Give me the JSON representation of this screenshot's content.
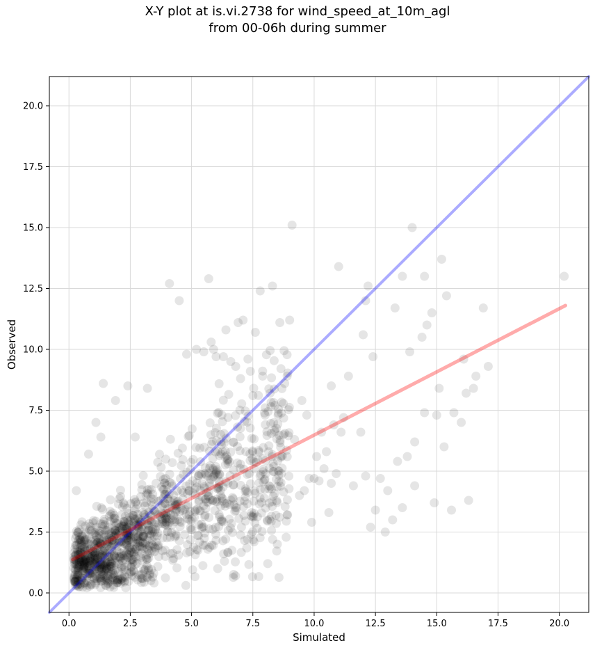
{
  "chart_data": {
    "type": "scatter",
    "title": "X-Y plot at is.vi.2738 for wind_speed_at_10m_agl\nfrom 00-06h during summer",
    "title_lines": [
      "X-Y plot at is.vi.2738 for wind_speed_at_10m_agl",
      "from 00-06h during summer"
    ],
    "xlabel": "Simulated",
    "ylabel": "Observed",
    "xlim": [
      -0.8,
      21.2
    ],
    "ylim": [
      -0.8,
      21.2
    ],
    "xticks": [
      0.0,
      2.5,
      5.0,
      7.5,
      10.0,
      12.5,
      15.0,
      17.5,
      20.0
    ],
    "xtick_labels": [
      "0.0",
      "2.5",
      "5.0",
      "7.5",
      "10.0",
      "12.5",
      "15.0",
      "17.5",
      "20.0"
    ],
    "yticks": [
      0.0,
      2.5,
      5.0,
      7.5,
      10.0,
      12.5,
      15.0,
      17.5,
      20.0
    ],
    "ytick_labels": [
      "0.0",
      "2.5",
      "5.0",
      "7.5",
      "10.0",
      "12.5",
      "15.0",
      "17.5",
      "20.0"
    ],
    "grid": true,
    "legend": "none",
    "colors": {
      "points": "#000000",
      "one_to_one_line": "#0000ff",
      "regression_line": "#ff0000",
      "grid": "#d9d9d9"
    },
    "series": [
      {
        "kind": "points",
        "x": [
          9.1,
          14.0,
          8.3,
          11.0,
          12.1,
          12.2,
          13.6,
          15.2,
          16.9,
          15.4,
          14.8,
          14.5,
          14.6,
          13.9,
          14.4,
          12.4,
          12.0,
          13.3,
          17.1,
          16.1,
          16.2,
          16.5,
          16.6,
          15.0,
          15.1,
          14.5,
          14.1,
          13.8,
          13.4,
          12.7,
          12.1,
          11.9,
          15.3,
          16.0,
          15.7,
          14.1,
          13.6,
          13.2,
          12.9,
          12.5,
          12.3,
          13.0,
          14.9,
          15.6,
          16.3,
          20.2,
          10.6,
          10.7,
          10.2,
          9.8,
          10.5,
          10.8,
          11.1,
          11.6,
          10.9,
          10.4,
          4.1,
          5.7,
          7.8,
          6.9,
          4.5,
          7.1,
          6.4,
          9.0,
          8.6,
          7.6,
          5.8,
          1.4,
          2.4,
          3.2,
          0.3,
          0.8,
          1.1,
          1.9,
          2.7,
          1.3,
          6.2,
          9.5,
          8.8,
          9.7,
          9.2,
          10.1,
          10.3,
          11.2,
          10.0,
          9.6,
          9.4,
          8.9,
          8.5,
          9.9,
          10.7,
          11.4,
          7.3,
          6.8,
          7.4,
          7.9,
          8.2,
          7.0,
          6.6,
          5.9,
          6.3,
          7.5,
          8.4,
          8.0,
          5.2,
          4.8,
          5.5,
          6.0
        ],
        "y": [
          15.1,
          15.0,
          12.6,
          13.4,
          12.0,
          12.6,
          13.0,
          13.7,
          11.7,
          12.2,
          11.5,
          13.0,
          11.0,
          9.9,
          10.5,
          9.7,
          10.6,
          11.7,
          9.3,
          9.6,
          8.2,
          8.4,
          8.9,
          7.3,
          8.4,
          7.4,
          6.2,
          5.6,
          5.4,
          4.7,
          4.8,
          6.6,
          6.0,
          7.0,
          7.4,
          4.4,
          3.5,
          3.0,
          2.5,
          3.4,
          2.7,
          4.2,
          3.7,
          3.4,
          3.8,
          13.0,
          3.3,
          4.5,
          4.6,
          4.7,
          5.8,
          6.9,
          6.6,
          4.4,
          4.9,
          5.1,
          12.7,
          12.9,
          12.4,
          11.1,
          12.0,
          11.2,
          10.8,
          11.2,
          11.1,
          10.7,
          10.3,
          8.6,
          8.5,
          8.4,
          4.2,
          5.7,
          7.0,
          7.9,
          6.4,
          6.4,
          6.2,
          7.9,
          8.6,
          7.3,
          6.3,
          5.6,
          6.6,
          7.2,
          4.7,
          4.2,
          4.0,
          3.2,
          2.0,
          2.9,
          8.5,
          8.9,
          9.6,
          9.3,
          9.1,
          8.9,
          8.2,
          8.8,
          9.5,
          10.0,
          9.7,
          8.1,
          7.7,
          7.3,
          10.0,
          9.8,
          9.9,
          9.7
        ],
        "count_note": "dense cluster of semi-transparent points concentrated between Simulated 0–8 and Observed 0–9"
      },
      {
        "kind": "line",
        "role": "1:1 reference",
        "x": [
          -0.8,
          21.2
        ],
        "y": [
          -0.8,
          21.2
        ]
      },
      {
        "kind": "line",
        "role": "linear fit",
        "x": [
          0.15,
          20.25
        ],
        "y": [
          1.37,
          11.8
        ]
      }
    ]
  }
}
